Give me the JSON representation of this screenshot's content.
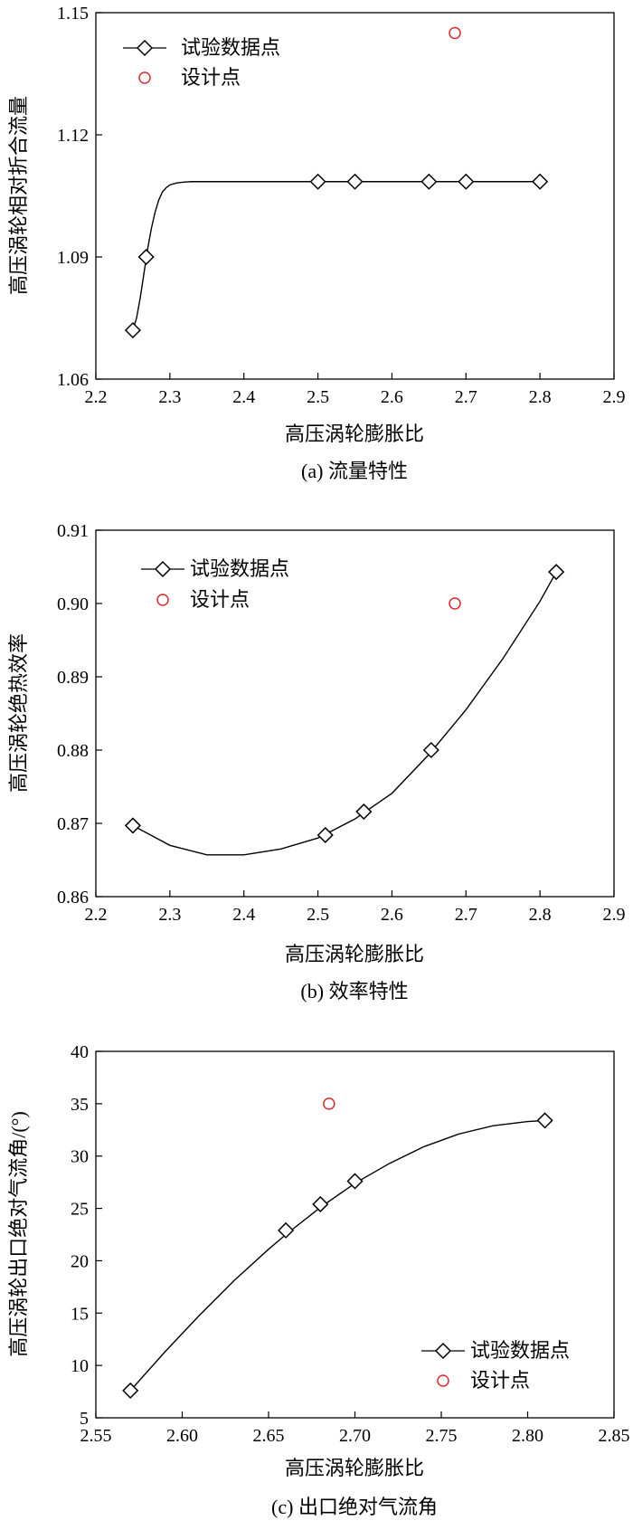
{
  "chart_data": [
    {
      "type": "line",
      "caption": "(a) 流量特性",
      "xlabel": "高压涡轮膨胀比",
      "ylabel": "高压涡轮相对折合流量",
      "xlim": [
        2.2,
        2.9
      ],
      "ylim": [
        1.06,
        1.15
      ],
      "xticks": [
        "2.2",
        "2.3",
        "2.4",
        "2.5",
        "2.6",
        "2.7",
        "2.8",
        "2.9"
      ],
      "yticks": [
        "1.06",
        "1.09",
        "1.12",
        "1.15"
      ],
      "legend_position": "top-left",
      "series": [
        {
          "name": "试验数据点",
          "marker": "diamond",
          "x": [
            2.25,
            2.268,
            2.5,
            2.55,
            2.65,
            2.7,
            2.8
          ],
          "y": [
            1.072,
            1.09,
            1.1085,
            1.1085,
            1.1085,
            1.1085,
            1.1085
          ],
          "curve_x": [
            2.25,
            2.255,
            2.26,
            2.265,
            2.27,
            2.275,
            2.28,
            2.285,
            2.29,
            2.295,
            2.3,
            2.31,
            2.32,
            2.33,
            2.35,
            2.4,
            2.5,
            2.6,
            2.7,
            2.8
          ],
          "curve_y": [
            1.072,
            1.075,
            1.08,
            1.086,
            1.092,
            1.097,
            1.101,
            1.104,
            1.106,
            1.107,
            1.1077,
            1.1082,
            1.1084,
            1.1085,
            1.1085,
            1.1085,
            1.1085,
            1.1085,
            1.1085,
            1.1085
          ]
        },
        {
          "name": "设计点",
          "marker": "circle",
          "color": "#e0282e",
          "x": [
            2.685
          ],
          "y": [
            1.145
          ]
        }
      ]
    },
    {
      "type": "line",
      "caption": "(b) 效率特性",
      "xlabel": "高压涡轮膨胀比",
      "ylabel": "高压涡轮绝热效率",
      "xlim": [
        2.2,
        2.9
      ],
      "ylim": [
        0.86,
        0.91
      ],
      "xticks": [
        "2.2",
        "2.3",
        "2.4",
        "2.5",
        "2.6",
        "2.7",
        "2.8",
        "2.9"
      ],
      "yticks": [
        "0.86",
        "0.87",
        "0.88",
        "0.89",
        "0.90",
        "0.91"
      ],
      "legend_position": "top-left",
      "series": [
        {
          "name": "试验数据点",
          "marker": "diamond",
          "x": [
            2.25,
            2.51,
            2.562,
            2.653,
            2.822
          ],
          "y": [
            0.8697,
            0.8684,
            0.8716,
            0.88,
            0.9043
          ],
          "curve_x": [
            2.25,
            2.3,
            2.35,
            2.4,
            2.45,
            2.5,
            2.55,
            2.6,
            2.65,
            2.7,
            2.75,
            2.8,
            2.822
          ],
          "curve_y": [
            0.8697,
            0.867,
            0.8657,
            0.8657,
            0.8665,
            0.868,
            0.8706,
            0.8741,
            0.8794,
            0.8855,
            0.8925,
            0.9003,
            0.9043
          ]
        },
        {
          "name": "设计点",
          "marker": "circle",
          "color": "#e0282e",
          "x": [
            2.685
          ],
          "y": [
            0.9
          ]
        }
      ]
    },
    {
      "type": "line",
      "caption": "(c) 出口绝对气流角",
      "xlabel": "高压涡轮膨胀比",
      "ylabel": "高压涡轮出口绝对气流角/(°)",
      "xlim": [
        2.55,
        2.85
      ],
      "ylim": [
        5,
        40
      ],
      "xticks": [
        "2.55",
        "2.60",
        "2.65",
        "2.70",
        "2.75",
        "2.80",
        "2.85"
      ],
      "yticks": [
        "5",
        "10",
        "15",
        "20",
        "25",
        "30",
        "35",
        "40"
      ],
      "legend_position": "bottom-right",
      "series": [
        {
          "name": "试验数据点",
          "marker": "diamond",
          "x": [
            2.57,
            2.66,
            2.68,
            2.7,
            2.81
          ],
          "y": [
            7.6,
            22.9,
            25.4,
            27.6,
            33.4
          ],
          "curve_x": [
            2.57,
            2.59,
            2.61,
            2.63,
            2.65,
            2.66,
            2.68,
            2.7,
            2.72,
            2.74,
            2.76,
            2.78,
            2.8,
            2.81
          ],
          "curve_y": [
            7.6,
            11.3,
            14.8,
            18.1,
            21.1,
            22.5,
            25.1,
            27.4,
            29.3,
            30.9,
            32.1,
            32.9,
            33.3,
            33.4
          ]
        },
        {
          "name": "设计点",
          "marker": "circle",
          "color": "#e0282e",
          "x": [
            2.685
          ],
          "y": [
            35.0
          ]
        }
      ]
    }
  ]
}
